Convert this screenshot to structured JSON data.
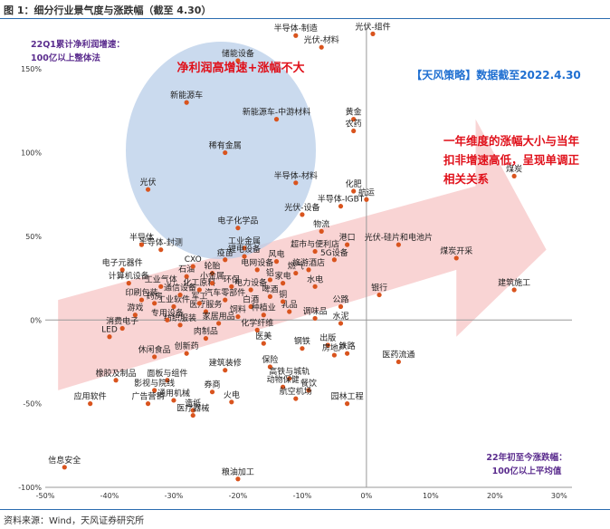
{
  "title": "图 1：细分行业景气度与涨跌幅（截至 4.30）",
  "source": "资料来源：Wind，天风证券研究所",
  "colors": {
    "point": "#d9541e",
    "ellipse": "#b8cde8",
    "arrow": "#f8c9c9",
    "red": "#e0101a",
    "blue": "#1f6fd1",
    "purple": "#5b2d8e"
  },
  "chart_data": {
    "type": "scatter",
    "xlim": [
      -50,
      32
    ],
    "ylim": [
      -100,
      175
    ],
    "x_ticks": [
      "-50%",
      "-40%",
      "-30%",
      "-20%",
      "-10%",
      "0%",
      "10%",
      "20%",
      "30%"
    ],
    "y_ticks": [
      "-100%",
      "-50%",
      "0%",
      "50%",
      "100%",
      "150%"
    ],
    "y_axis_note": [
      "22Q1累计净利润增速：",
      "100亿以上整体法"
    ],
    "x_axis_note": [
      "22年初至今涨跌幅：",
      "100亿以上平均值"
    ],
    "ellipse_caption": "净利润高增速+涨幅不大",
    "strategy_note": "【天风策略】数据截至2022.4.30",
    "arrow_caption": [
      "一年维度的涨幅大小与当年",
      "扣非增速高低，呈现单调正",
      "相关关系"
    ],
    "points": [
      {
        "label": "光伏-组件",
        "x": 1,
        "y": 171
      },
      {
        "label": "半导体-制造",
        "x": -11,
        "y": 170
      },
      {
        "label": "光伏-材料",
        "x": -7,
        "y": 163
      },
      {
        "label": "储能设备",
        "x": -20,
        "y": 155
      },
      {
        "label": "新能源车",
        "x": -28,
        "y": 130
      },
      {
        "label": "黄金",
        "x": -2,
        "y": 120
      },
      {
        "label": "新能源车-中游材料",
        "x": -14,
        "y": 120
      },
      {
        "label": "农药",
        "x": -2,
        "y": 113
      },
      {
        "label": "稀有金属",
        "x": -22,
        "y": 100
      },
      {
        "label": "半导体-材料",
        "x": -11,
        "y": 82
      },
      {
        "label": "光伏",
        "x": -34,
        "y": 78
      },
      {
        "label": "化肥",
        "x": -2,
        "y": 77
      },
      {
        "label": "航运",
        "x": 0,
        "y": 72
      },
      {
        "label": "半导体-IGBT",
        "x": -4,
        "y": 68
      },
      {
        "label": "光伏-设备",
        "x": -10,
        "y": 63
      },
      {
        "label": "电子化学品",
        "x": -20,
        "y": 55
      },
      {
        "label": "物流",
        "x": -7,
        "y": 53
      },
      {
        "label": "煤炭",
        "x": 23,
        "y": 86
      },
      {
        "label": "光伏-硅片和电池片",
        "x": 5,
        "y": 45
      },
      {
        "label": "煤炭开采",
        "x": 14,
        "y": 37
      },
      {
        "label": "港口",
        "x": -3,
        "y": 45
      },
      {
        "label": "半导体-封测",
        "x": -32,
        "y": 42
      },
      {
        "label": "工业金属",
        "x": -19,
        "y": 43
      },
      {
        "label": "超市与便利店",
        "x": -8,
        "y": 41
      },
      {
        "label": "5G设备",
        "x": -5,
        "y": 36
      },
      {
        "label": "建筑施工",
        "x": 23,
        "y": 18
      },
      {
        "label": "银行",
        "x": 2,
        "y": 15
      },
      {
        "label": "水电",
        "x": -8,
        "y": 20
      },
      {
        "label": "公路",
        "x": -4,
        "y": 8
      },
      {
        "label": "水泥",
        "x": -4,
        "y": -2
      },
      {
        "label": "出版",
        "x": -6,
        "y": -15
      },
      {
        "label": "医药流通",
        "x": 5,
        "y": -25
      },
      {
        "label": "铁路",
        "x": -3,
        "y": -20
      },
      {
        "label": "房地产",
        "x": -5,
        "y": -21
      },
      {
        "label": "钢铁",
        "x": -10,
        "y": -17
      },
      {
        "label": "园林工程",
        "x": -3,
        "y": -50
      },
      {
        "label": "保险",
        "x": -15,
        "y": -28
      },
      {
        "label": "高铁与城轨",
        "x": -12,
        "y": -35
      },
      {
        "label": "动物保健",
        "x": -13,
        "y": -40
      },
      {
        "label": "餐饮",
        "x": -9,
        "y": -42
      },
      {
        "label": "航空机场",
        "x": -11,
        "y": -47
      },
      {
        "label": "建筑装修",
        "x": -22,
        "y": -30
      },
      {
        "label": "券商",
        "x": -24,
        "y": -43
      },
      {
        "label": "火电",
        "x": -21,
        "y": -49
      },
      {
        "label": "造纸",
        "x": -27,
        "y": -54
      },
      {
        "label": "医美",
        "x": -16,
        "y": -14
      },
      {
        "label": "化学纤维",
        "x": -17,
        "y": -6
      },
      {
        "label": "肉制品",
        "x": -25,
        "y": -11
      },
      {
        "label": "休闲食品",
        "x": -33,
        "y": -22
      },
      {
        "label": "创新药",
        "x": -28,
        "y": -20
      },
      {
        "label": "LED",
        "x": -40,
        "y": -10
      },
      {
        "label": "消费电子",
        "x": -38,
        "y": -5
      },
      {
        "label": "橡胶及制品",
        "x": -39,
        "y": -36
      },
      {
        "label": "面板与组件",
        "x": -31,
        "y": -36
      },
      {
        "label": "影视与院线",
        "x": -33,
        "y": -42
      },
      {
        "label": "广告营销",
        "x": -34,
        "y": -50
      },
      {
        "label": "应用软件",
        "x": -43,
        "y": -50
      },
      {
        "label": "通用机械",
        "x": -30,
        "y": -48
      },
      {
        "label": "医疗器械",
        "x": -27,
        "y": -57
      },
      {
        "label": "信息安全",
        "x": -47,
        "y": -88
      },
      {
        "label": "粮油加工",
        "x": -20,
        "y": -95
      },
      {
        "label": "半导体",
        "x": -35,
        "y": 45
      },
      {
        "label": "电子元器件",
        "x": -38,
        "y": 30
      },
      {
        "label": "工业气体",
        "x": -32,
        "y": 20
      },
      {
        "label": "药房",
        "x": -33,
        "y": 10
      },
      {
        "label": "石油",
        "x": -28,
        "y": 26
      },
      {
        "label": "轮胎",
        "x": -24,
        "y": 28
      },
      {
        "label": "化工原料",
        "x": -26,
        "y": 18
      },
      {
        "label": "汽车零部件",
        "x": -22,
        "y": 12
      },
      {
        "label": "白酒",
        "x": -18,
        "y": 8
      },
      {
        "label": "啤酒",
        "x": -15,
        "y": 14
      },
      {
        "label": "家电",
        "x": -13,
        "y": 22
      },
      {
        "label": "电网设备",
        "x": -17,
        "y": 30
      },
      {
        "label": "风电",
        "x": -14,
        "y": 35
      },
      {
        "label": "锂电设备",
        "x": -19,
        "y": 38
      },
      {
        "label": "医疗服务",
        "x": -25,
        "y": 5
      },
      {
        "label": "CXO",
        "x": -27,
        "y": 32
      },
      {
        "label": "疫苗",
        "x": -22,
        "y": 36
      },
      {
        "label": "工业软件",
        "x": -30,
        "y": 8
      },
      {
        "label": "纺织服装",
        "x": -29,
        "y": -3
      },
      {
        "label": "家居用品",
        "x": -23,
        "y": -2
      },
      {
        "label": "饲料",
        "x": -20,
        "y": 2
      },
      {
        "label": "种植业",
        "x": -16,
        "y": 3
      },
      {
        "label": "乳品",
        "x": -12,
        "y": 5
      },
      {
        "label": "调味品",
        "x": -8,
        "y": 1
      },
      {
        "label": "燃气",
        "x": -11,
        "y": 28
      },
      {
        "label": "旅游酒店",
        "x": -9,
        "y": 30
      },
      {
        "label": "专用设备",
        "x": -31,
        "y": 0
      },
      {
        "label": "印刷包装",
        "x": -35,
        "y": 12
      },
      {
        "label": "游戏",
        "x": -36,
        "y": 3
      },
      {
        "label": "计算机设备",
        "x": -37,
        "y": 22
      },
      {
        "label": "通信设备",
        "x": -29,
        "y": 15
      },
      {
        "label": "军工",
        "x": -26,
        "y": 10
      },
      {
        "label": "环保",
        "x": -21,
        "y": 20
      },
      {
        "label": "电力设备",
        "x": -18,
        "y": 18
      },
      {
        "label": "铝",
        "x": -15,
        "y": 24
      },
      {
        "label": "铜",
        "x": -13,
        "y": 11
      },
      {
        "label": "小金属",
        "x": -24,
        "y": 22
      }
    ]
  }
}
